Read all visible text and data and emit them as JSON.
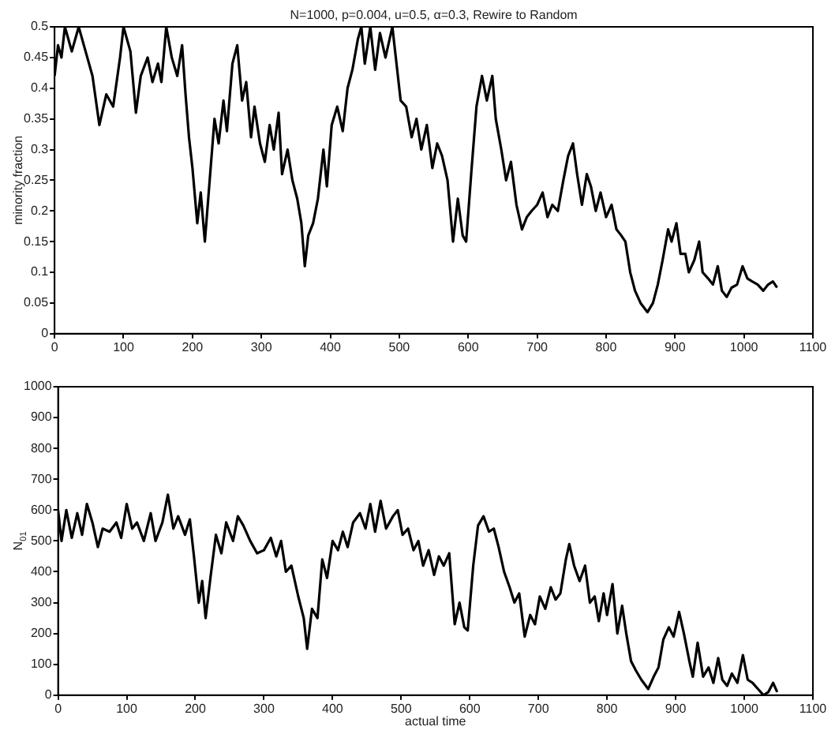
{
  "chart_data": [
    {
      "type": "line",
      "title": "N=1000, p=0.004, u=0.5, α=0.3, Rewire to Random",
      "ylabel": "minority fraction",
      "grid": false,
      "xlim": [
        0,
        1100
      ],
      "xticks": [
        0,
        100,
        200,
        300,
        400,
        500,
        600,
        700,
        800,
        900,
        1000,
        1100
      ],
      "ylim": [
        0,
        0.5
      ],
      "yticks": [
        0,
        0.05,
        0.1,
        0.15,
        0.2,
        0.25,
        0.3,
        0.35,
        0.4,
        0.45,
        0.5
      ],
      "x": [
        0,
        5,
        10,
        15,
        25,
        35,
        45,
        55,
        65,
        75,
        85,
        95,
        100,
        110,
        118,
        125,
        135,
        142,
        150,
        155,
        162,
        170,
        178,
        185,
        190,
        195,
        200,
        207,
        212,
        218,
        225,
        232,
        238,
        245,
        250,
        258,
        265,
        272,
        278,
        285,
        290,
        298,
        305,
        312,
        318,
        325,
        330,
        338,
        345,
        352,
        358,
        363,
        368,
        375,
        382,
        390,
        395,
        402,
        410,
        418,
        425,
        432,
        440,
        445,
        450,
        458,
        465,
        472,
        480,
        490,
        495,
        502,
        510,
        518,
        525,
        532,
        540,
        548,
        555,
        562,
        570,
        578,
        585,
        592,
        597,
        605,
        612,
        620,
        627,
        635,
        640,
        648,
        655,
        662,
        670,
        678,
        685,
        692,
        700,
        708,
        715,
        722,
        730,
        738,
        745,
        752,
        758,
        765,
        772,
        778,
        785,
        792,
        800,
        808,
        815,
        822,
        828,
        835,
        842,
        850,
        860,
        868,
        875,
        882,
        890,
        895,
        902,
        908,
        915,
        920,
        928,
        935,
        940,
        948,
        955,
        962,
        968,
        975,
        982,
        990,
        998,
        1005,
        1012,
        1020,
        1028,
        1035,
        1042,
        1048
      ],
      "series": [
        {
          "color": "#000000",
          "values": [
            0.42,
            0.47,
            0.45,
            0.5,
            0.46,
            0.5,
            0.46,
            0.42,
            0.34,
            0.39,
            0.37,
            0.45,
            0.5,
            0.46,
            0.36,
            0.42,
            0.45,
            0.41,
            0.44,
            0.41,
            0.5,
            0.45,
            0.42,
            0.47,
            0.39,
            0.32,
            0.27,
            0.18,
            0.23,
            0.15,
            0.25,
            0.35,
            0.31,
            0.38,
            0.33,
            0.44,
            0.47,
            0.38,
            0.41,
            0.32,
            0.37,
            0.31,
            0.28,
            0.34,
            0.3,
            0.36,
            0.26,
            0.3,
            0.25,
            0.22,
            0.18,
            0.11,
            0.16,
            0.18,
            0.22,
            0.3,
            0.24,
            0.34,
            0.37,
            0.33,
            0.4,
            0.43,
            0.48,
            0.5,
            0.44,
            0.5,
            0.43,
            0.49,
            0.45,
            0.5,
            0.45,
            0.38,
            0.37,
            0.32,
            0.35,
            0.3,
            0.34,
            0.27,
            0.31,
            0.29,
            0.25,
            0.15,
            0.22,
            0.16,
            0.15,
            0.27,
            0.37,
            0.42,
            0.38,
            0.42,
            0.35,
            0.3,
            0.25,
            0.28,
            0.21,
            0.17,
            0.19,
            0.2,
            0.21,
            0.23,
            0.19,
            0.21,
            0.2,
            0.25,
            0.29,
            0.31,
            0.26,
            0.21,
            0.26,
            0.24,
            0.2,
            0.23,
            0.19,
            0.21,
            0.17,
            0.16,
            0.15,
            0.1,
            0.07,
            0.05,
            0.035,
            0.05,
            0.08,
            0.12,
            0.17,
            0.15,
            0.18,
            0.13,
            0.13,
            0.1,
            0.12,
            0.15,
            0.1,
            0.09,
            0.08,
            0.11,
            0.07,
            0.06,
            0.075,
            0.08,
            0.11,
            0.09,
            0.085,
            0.08,
            0.07,
            0.08,
            0.085,
            0.075
          ]
        }
      ]
    },
    {
      "type": "line",
      "xlabel": "actual time",
      "ylabel": "N$_{01}$",
      "grid": false,
      "xlim": [
        0,
        1100
      ],
      "xticks": [
        0,
        100,
        200,
        300,
        400,
        500,
        600,
        700,
        800,
        900,
        1000,
        1100
      ],
      "ylim": [
        0,
        1000
      ],
      "yticks": [
        0,
        100,
        200,
        300,
        400,
        500,
        600,
        700,
        800,
        900,
        1000
      ],
      "x": [
        0,
        5,
        12,
        20,
        28,
        35,
        42,
        50,
        58,
        65,
        75,
        85,
        92,
        100,
        108,
        115,
        125,
        135,
        142,
        152,
        160,
        168,
        175,
        185,
        192,
        198,
        205,
        210,
        215,
        222,
        230,
        238,
        245,
        255,
        262,
        270,
        280,
        290,
        300,
        310,
        318,
        325,
        332,
        340,
        350,
        358,
        363,
        370,
        378,
        385,
        392,
        400,
        408,
        415,
        422,
        430,
        440,
        448,
        455,
        462,
        470,
        478,
        488,
        495,
        502,
        510,
        518,
        525,
        532,
        540,
        548,
        555,
        562,
        570,
        578,
        585,
        592,
        597,
        605,
        612,
        620,
        628,
        635,
        642,
        650,
        658,
        665,
        672,
        680,
        688,
        695,
        702,
        710,
        718,
        725,
        732,
        740,
        745,
        752,
        760,
        768,
        775,
        782,
        788,
        795,
        800,
        808,
        815,
        822,
        828,
        835,
        842,
        850,
        860,
        868,
        875,
        882,
        890,
        897,
        905,
        912,
        920,
        925,
        932,
        940,
        948,
        955,
        962,
        968,
        975,
        982,
        990,
        998,
        1005,
        1012,
        1020,
        1028,
        1035,
        1042,
        1048
      ],
      "series": [
        {
          "color": "#000000",
          "values": [
            600,
            500,
            600,
            510,
            590,
            520,
            620,
            560,
            480,
            540,
            530,
            560,
            510,
            620,
            540,
            560,
            500,
            590,
            500,
            560,
            650,
            540,
            580,
            520,
            570,
            450,
            300,
            370,
            250,
            380,
            520,
            460,
            560,
            500,
            580,
            550,
            500,
            460,
            470,
            510,
            450,
            500,
            400,
            420,
            320,
            250,
            150,
            280,
            250,
            440,
            380,
            500,
            470,
            530,
            480,
            560,
            590,
            540,
            620,
            530,
            630,
            540,
            580,
            600,
            520,
            540,
            470,
            500,
            420,
            470,
            390,
            450,
            420,
            460,
            230,
            300,
            220,
            210,
            420,
            550,
            580,
            530,
            540,
            480,
            400,
            350,
            300,
            330,
            190,
            260,
            230,
            320,
            280,
            350,
            310,
            330,
            440,
            490,
            420,
            370,
            420,
            300,
            320,
            240,
            330,
            260,
            360,
            200,
            290,
            200,
            110,
            80,
            50,
            20,
            60,
            90,
            180,
            220,
            190,
            270,
            200,
            110,
            60,
            170,
            60,
            90,
            40,
            120,
            50,
            30,
            70,
            40,
            130,
            50,
            40,
            20,
            0,
            10,
            40,
            10
          ]
        }
      ]
    }
  ]
}
